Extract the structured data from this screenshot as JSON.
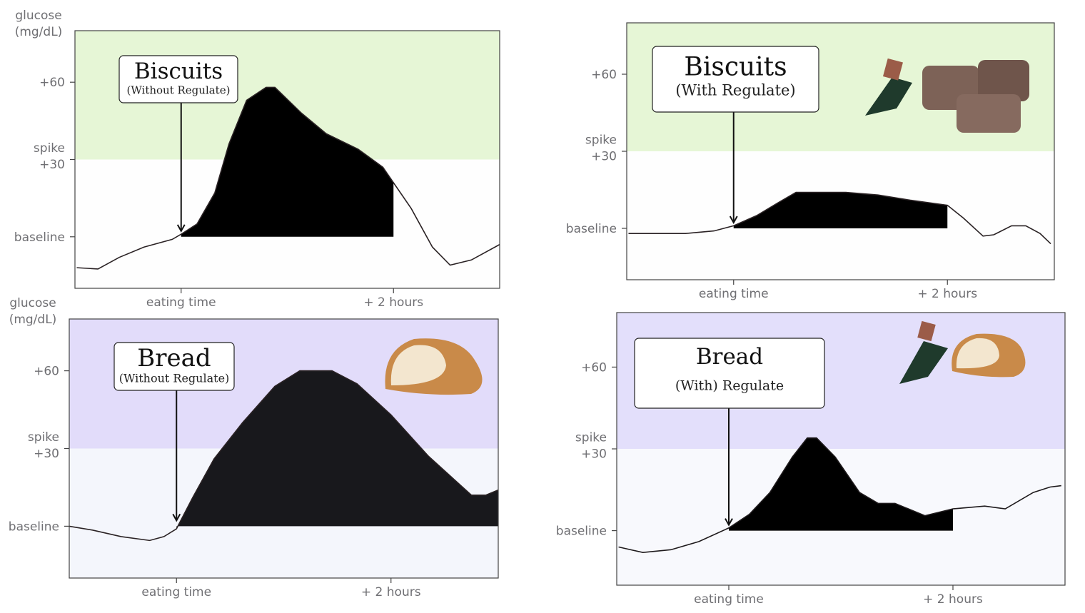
{
  "chart_data": [
    {
      "type": "area",
      "title": "Biscuits",
      "subtitle": "(Without Regulate)",
      "ylabel": [
        "glucose",
        "(mg/dL)"
      ],
      "zone_color": "#e6f6d6",
      "background": "#fefefe",
      "zone_from": 30,
      "xlim": [
        -60,
        180
      ],
      "ylim": [
        -20,
        80
      ],
      "xticks": [
        {
          "value": 0,
          "label": "eating time"
        },
        {
          "value": 120,
          "label": "+ 2 hours"
        }
      ],
      "yticks": [
        {
          "value": 0,
          "label": [
            "baseline"
          ]
        },
        {
          "value": 30,
          "label": [
            "spike",
            "+30"
          ]
        },
        {
          "value": 60,
          "label": [
            "+60"
          ]
        }
      ],
      "line": {
        "color": "#2a2224",
        "x": [
          -59,
          -47,
          -35,
          -21,
          -5,
          0,
          9,
          19,
          27,
          37,
          48,
          53,
          68,
          82,
          100,
          114,
          120,
          130,
          142,
          152,
          164,
          180
        ],
        "values": [
          -12,
          -12.5,
          -8,
          -4,
          -1,
          1,
          5,
          17,
          36,
          53,
          58,
          58,
          48,
          40,
          34,
          27,
          21,
          11,
          -4,
          -11,
          -9,
          -3
        ]
      },
      "area": {
        "color": "#000000",
        "x": [
          0,
          9,
          19,
          27,
          37,
          48,
          53,
          68,
          82,
          100,
          114,
          120
        ],
        "values": [
          1,
          5,
          17,
          36,
          53,
          58,
          58,
          48,
          40,
          34,
          27,
          21
        ]
      }
    },
    {
      "type": "area",
      "title": "Biscuits",
      "subtitle": "(With Regulate)",
      "zone_color": "#e6f6d6",
      "background": "#fefefe",
      "zone_from": 30,
      "xlim": [
        -60,
        180
      ],
      "ylim": [
        -20,
        80
      ],
      "xticks": [
        {
          "value": 0,
          "label": "eating time"
        },
        {
          "value": 120,
          "label": "+ 2 hours"
        }
      ],
      "yticks": [
        {
          "value": 0,
          "label": [
            "baseline"
          ]
        },
        {
          "value": 30,
          "label": [
            "spike",
            "+30"
          ]
        },
        {
          "value": 60,
          "label": [
            "+60"
          ]
        }
      ],
      "line": {
        "color": "#2a2224",
        "x": [
          -59,
          -27,
          -11,
          0,
          13,
          25,
          35,
          49,
          63,
          81,
          99,
          120,
          129,
          140,
          146,
          156,
          164,
          172,
          178
        ],
        "values": [
          -2,
          -2,
          -1,
          1,
          5,
          10,
          14,
          14,
          14,
          13,
          11,
          9,
          4,
          -3,
          -2.5,
          1,
          1,
          -2,
          -6
        ]
      },
      "area": {
        "color": "#000000",
        "x": [
          0,
          13,
          25,
          35,
          49,
          63,
          81,
          99,
          120
        ],
        "values": [
          1,
          5,
          10,
          14,
          14,
          14,
          13,
          11,
          9
        ]
      }
    },
    {
      "type": "area",
      "title": "Bread",
      "subtitle": "(Without Regulate)",
      "ylabel": [
        "glucose",
        "(mg/dL)"
      ],
      "zone_color": "#e2dcfa",
      "background": "#f4f6fc",
      "zone_from": 30,
      "xlim": [
        -60,
        180
      ],
      "ylim": [
        -20,
        80
      ],
      "xticks": [
        {
          "value": 0,
          "label": "eating time"
        },
        {
          "value": 120,
          "label": "+ 2 hours"
        }
      ],
      "yticks": [
        {
          "value": 0,
          "label": [
            "baseline"
          ]
        },
        {
          "value": 30,
          "label": [
            "spike",
            "+30"
          ]
        },
        {
          "value": 60,
          "label": [
            "+60"
          ]
        }
      ],
      "line": {
        "color": "#2a2224",
        "x": [
          -60,
          -47,
          -31,
          -15,
          -7,
          0,
          9,
          21,
          37,
          55,
          69,
          87,
          101,
          120,
          141,
          165,
          173,
          180
        ],
        "values": [
          0,
          -1.5,
          -4,
          -5.5,
          -4,
          -1,
          11,
          26,
          40,
          54,
          60,
          60,
          55,
          43,
          27,
          12,
          12,
          14
        ]
      },
      "area": {
        "color": "#18181c",
        "x": [
          0,
          9,
          21,
          37,
          55,
          69,
          87,
          101,
          120,
          141,
          165,
          173,
          180
        ],
        "values": [
          -1,
          11,
          26,
          40,
          54,
          60,
          60,
          55,
          43,
          27,
          12,
          12,
          14
        ]
      }
    },
    {
      "type": "area",
      "title": "Bread",
      "subtitle": "(With) Regulate",
      "zone_color": "#e3dffb",
      "background": "#f8f9fd",
      "zone_from": 30,
      "xlim": [
        -60,
        180
      ],
      "ylim": [
        -20,
        80
      ],
      "xticks": [
        {
          "value": 0,
          "label": "eating time"
        },
        {
          "value": 120,
          "label": "+ 2 hours"
        }
      ],
      "yticks": [
        {
          "value": 0,
          "label": [
            "baseline"
          ]
        },
        {
          "value": 30,
          "label": [
            "spike",
            "+30"
          ]
        },
        {
          "value": 60,
          "label": [
            "+60"
          ]
        }
      ],
      "line": {
        "color": "#1e1a1c",
        "x": [
          -59,
          -46,
          -31,
          -16,
          0,
          11,
          22,
          34,
          42,
          47,
          57,
          70,
          80,
          89,
          105,
          120,
          137,
          148,
          163,
          172,
          178
        ],
        "values": [
          -6,
          -8,
          -7,
          -4,
          1,
          6,
          14,
          27,
          34,
          34,
          27,
          14,
          10,
          10,
          5.5,
          8,
          9,
          8,
          14,
          16,
          16.5
        ]
      },
      "area": {
        "color": "#000000",
        "x": [
          0,
          11,
          22,
          34,
          42,
          47,
          57,
          70,
          80,
          89,
          105,
          120
        ],
        "values": [
          1,
          6,
          14,
          27,
          34,
          34,
          27,
          14,
          10,
          10,
          5.5,
          8
        ]
      }
    }
  ]
}
